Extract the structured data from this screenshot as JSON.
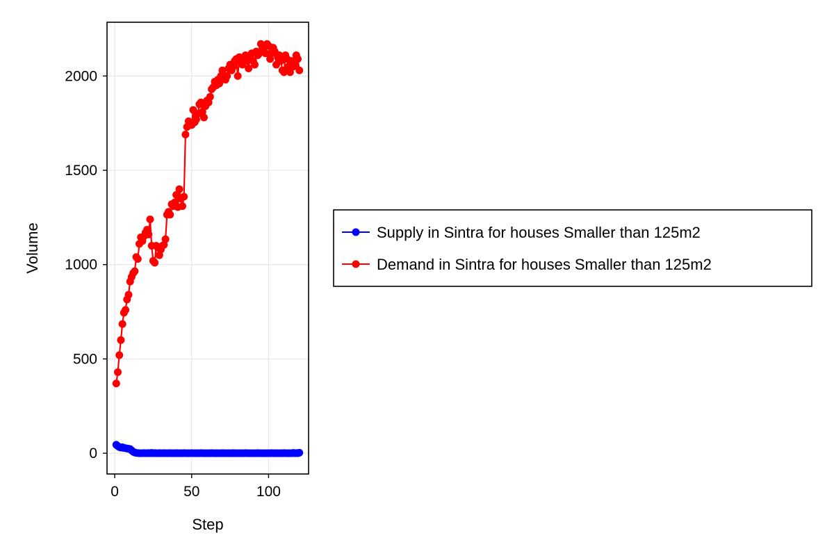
{
  "chart_data": {
    "type": "line",
    "xlabel": "Step",
    "ylabel": "Volume",
    "xlim": [
      -5,
      126
    ],
    "ylim": [
      -110,
      2285
    ],
    "xticks": [
      0,
      50,
      100
    ],
    "xtick_labels": [
      "0",
      "50",
      "100"
    ],
    "yticks": [
      0,
      500,
      1000,
      1500,
      2000
    ],
    "ytick_labels": [
      "0",
      "500",
      "1000",
      "1500",
      "2000"
    ],
    "grid": true,
    "legend_position": "right",
    "series": [
      {
        "name": "Supply in Sintra for houses Smaller than 125m2",
        "color": "#0000ff",
        "x": [
          1,
          2,
          3,
          4,
          5,
          6,
          7,
          8,
          9,
          10,
          11,
          12,
          13,
          14,
          15,
          16,
          17,
          18,
          19,
          20,
          21,
          22,
          23,
          24,
          25,
          26,
          27,
          28,
          29,
          30,
          31,
          32,
          33,
          34,
          35,
          36,
          37,
          38,
          39,
          40,
          41,
          42,
          43,
          44,
          45,
          46,
          47,
          48,
          49,
          50,
          51,
          52,
          53,
          54,
          55,
          56,
          57,
          58,
          59,
          60,
          61,
          62,
          63,
          64,
          65,
          66,
          67,
          68,
          69,
          70,
          71,
          72,
          73,
          74,
          75,
          76,
          77,
          78,
          79,
          80,
          81,
          82,
          83,
          84,
          85,
          86,
          87,
          88,
          89,
          90,
          91,
          92,
          93,
          94,
          95,
          96,
          97,
          98,
          99,
          100,
          101,
          102,
          103,
          104,
          105,
          106,
          107,
          108,
          109,
          110,
          111,
          112,
          113,
          114,
          115,
          116,
          117,
          118,
          119,
          120
        ],
        "y": [
          45,
          38,
          33,
          30,
          32,
          28,
          27,
          25,
          24,
          22,
          15,
          8,
          4,
          2,
          1,
          0,
          0,
          0,
          1,
          0,
          0,
          1,
          0,
          2,
          0,
          1,
          0,
          0,
          1,
          0,
          0,
          1,
          0,
          0,
          0,
          1,
          0,
          0,
          0,
          1,
          0,
          0,
          0,
          0,
          1,
          0,
          0,
          0,
          0,
          1,
          0,
          0,
          0,
          0,
          0,
          1,
          0,
          0,
          0,
          0,
          0,
          0,
          1,
          0,
          0,
          0,
          0,
          0,
          0,
          1,
          0,
          0,
          0,
          0,
          0,
          0,
          1,
          0,
          0,
          0,
          0,
          0,
          0,
          0,
          1,
          0,
          0,
          0,
          0,
          0,
          0,
          0,
          1,
          0,
          0,
          0,
          0,
          0,
          0,
          0,
          0,
          1,
          0,
          0,
          0,
          0,
          0,
          0,
          0,
          1,
          0,
          0,
          0,
          0,
          0,
          2,
          0,
          1,
          0,
          3
        ]
      },
      {
        "name": "Demand in Sintra for houses Smaller than 125m2",
        "color": "#ff0000",
        "x": [
          1,
          2,
          3,
          4,
          5,
          6,
          7,
          8,
          9,
          10,
          11,
          12,
          13,
          14,
          15,
          16,
          17,
          18,
          19,
          20,
          21,
          22,
          23,
          24,
          25,
          26,
          27,
          28,
          29,
          30,
          31,
          32,
          33,
          34,
          35,
          36,
          37,
          38,
          39,
          40,
          41,
          42,
          43,
          44,
          45,
          46,
          47,
          48,
          49,
          50,
          51,
          52,
          53,
          54,
          55,
          56,
          57,
          58,
          59,
          60,
          61,
          62,
          63,
          64,
          65,
          66,
          67,
          68,
          69,
          70,
          71,
          72,
          73,
          74,
          75,
          76,
          77,
          78,
          79,
          80,
          81,
          82,
          83,
          84,
          85,
          86,
          87,
          88,
          89,
          90,
          91,
          92,
          93,
          94,
          95,
          96,
          97,
          98,
          99,
          100,
          101,
          102,
          103,
          104,
          105,
          106,
          107,
          108,
          109,
          110,
          111,
          112,
          113,
          114,
          115,
          116,
          117,
          118,
          119,
          120
        ],
        "y": [
          370,
          430,
          520,
          600,
          685,
          745,
          760,
          815,
          840,
          910,
          935,
          955,
          965,
          1040,
          1030,
          1110,
          1145,
          1125,
          1150,
          1170,
          1185,
          1160,
          1240,
          1100,
          1020,
          1010,
          1100,
          1090,
          1050,
          1080,
          1100,
          1105,
          1135,
          1265,
          1280,
          1265,
          1320,
          1310,
          1330,
          1370,
          1305,
          1400,
          1350,
          1310,
          1360,
          1690,
          1730,
          1760,
          1750,
          1740,
          1820,
          1755,
          1770,
          1800,
          1850,
          1860,
          1810,
          1780,
          1840,
          1870,
          1860,
          1890,
          1930,
          1940,
          1970,
          1950,
          1980,
          1960,
          2000,
          2030,
          2000,
          1980,
          2000,
          2040,
          2060,
          2030,
          2050,
          2080,
          2090,
          2000,
          2100,
          2070,
          2060,
          2090,
          2110,
          2080,
          2040,
          2100,
          2120,
          2080,
          2060,
          2130,
          2110,
          2120,
          2170,
          2150,
          2130,
          2120,
          2170,
          2160,
          2090,
          2120,
          2150,
          2130,
          2060,
          2100,
          2110,
          2080,
          2030,
          2020,
          2110,
          2090,
          2050,
          2020,
          2080,
          2050,
          2060,
          2110,
          2090,
          2030
        ]
      }
    ]
  }
}
